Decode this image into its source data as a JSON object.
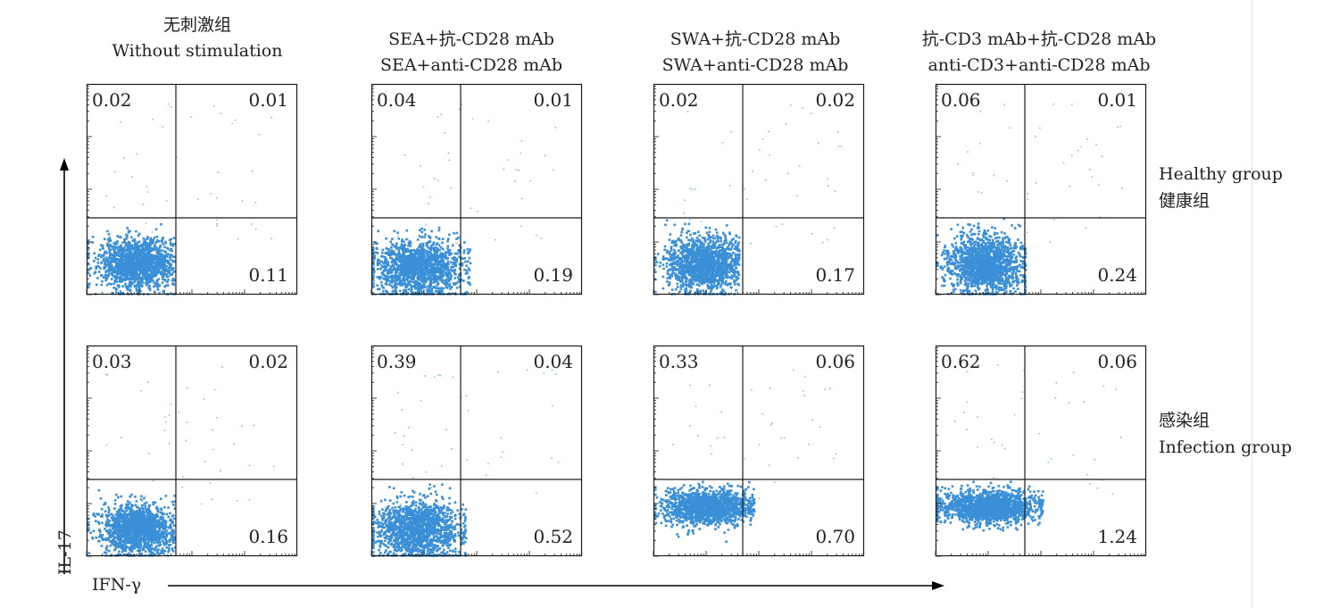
{
  "columns": [
    {
      "title_zh": "无刺激组",
      "title_en": "Without stimulation"
    },
    {
      "title_zh": "SEA+抗-CD28 mAb",
      "title_en": "SEA+anti-CD28  mAb"
    },
    {
      "title_zh": "SWA+抗-CD28 mAb",
      "title_en": "SWA+anti-CD28  mAb"
    },
    {
      "title_zh": "抗-CD3 mAb+抗-CD28 mAb",
      "title_en": "anti-CD3+anti-CD28  mAb"
    }
  ],
  "rows": [
    {
      "label_1": "Healthy  group",
      "label_2": "健康组"
    },
    {
      "label_1": "感染组",
      "label_2": "Infection  group"
    }
  ],
  "axes": {
    "x_label": "IFN-γ",
    "y_label": "IL-17"
  },
  "colors": {
    "dots": "#3a8fd6",
    "frame": "#1a1a1a",
    "arrow": "#000000"
  },
  "chart_data": {
    "type": "scatter",
    "plot_kind": "flow cytometry quadrant dot plot",
    "x_variable": "IFN-γ",
    "y_variable": "IL-17",
    "quadrant_order": [
      "upper_left",
      "upper_right",
      "lower_right"
    ],
    "panels": [
      {
        "row": 0,
        "col": 0,
        "upper_left": "0.02",
        "upper_right": "0.01",
        "lower_right": "0.11"
      },
      {
        "row": 0,
        "col": 1,
        "upper_left": "0.04",
        "upper_right": "0.01",
        "lower_right": "0.19"
      },
      {
        "row": 0,
        "col": 2,
        "upper_left": "0.02",
        "upper_right": "0.02",
        "lower_right": "0.17"
      },
      {
        "row": 0,
        "col": 3,
        "upper_left": "0.06",
        "upper_right": "0.01",
        "lower_right": "0.24"
      },
      {
        "row": 1,
        "col": 0,
        "upper_left": "0.03",
        "upper_right": "0.02",
        "lower_right": "0.16"
      },
      {
        "row": 1,
        "col": 1,
        "upper_left": "0.39",
        "upper_right": "0.04",
        "lower_right": "0.52"
      },
      {
        "row": 1,
        "col": 2,
        "upper_left": "0.33",
        "upper_right": "0.06",
        "lower_right": "0.70"
      },
      {
        "row": 1,
        "col": 3,
        "upper_left": "0.62",
        "upper_right": "0.06",
        "lower_right": "1.24"
      }
    ]
  }
}
